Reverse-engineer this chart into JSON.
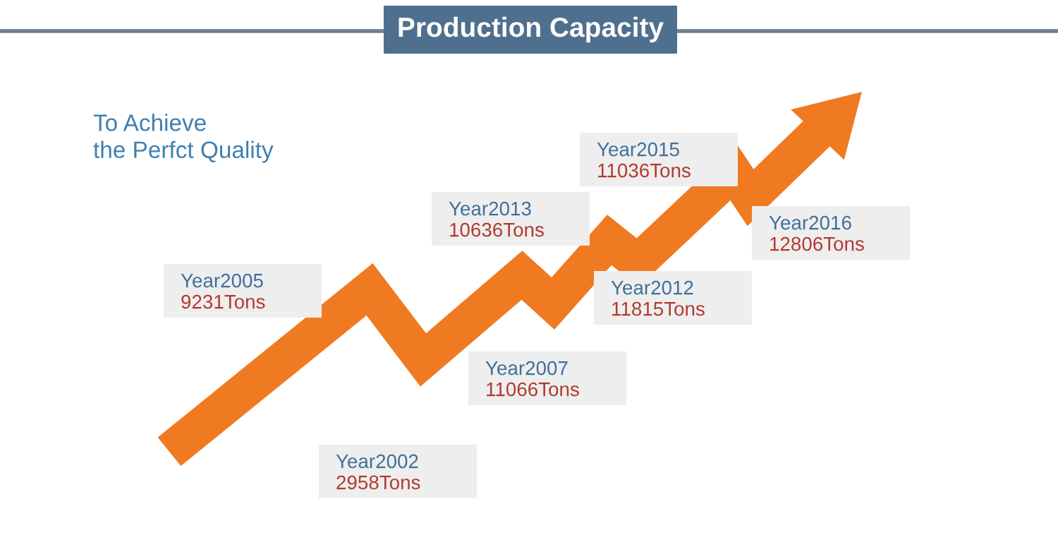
{
  "chart_data": {
    "type": "other",
    "title": "Production Capacity",
    "annotations": [
      "To Achieve\nthe Perfct Quality"
    ],
    "categories": [
      "Year2002",
      "Year2005",
      "Year2007",
      "Year2012",
      "Year2013",
      "Year2015",
      "Year2016"
    ],
    "values": [
      2958,
      9231,
      11066,
      11815,
      10636,
      11036,
      12806
    ],
    "value_labels": [
      "2958Tons",
      "9231Tons",
      "11066Tons",
      "11815Tons",
      "10636Tons",
      "11036Tons",
      "12806Tons"
    ],
    "color": "#eeeeee"
  }
}
